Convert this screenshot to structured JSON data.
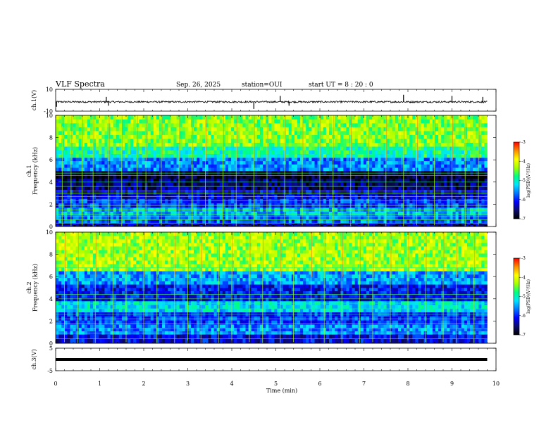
{
  "header": {
    "title": "VLF Spectra",
    "date": "Sep. 26, 2025",
    "station": "station=OUI",
    "start": "start  UT =   8 : 20 : 0"
  },
  "colors": {
    "colormap": [
      "#000000",
      "#0b0b6e",
      "#0000ff",
      "#0077ff",
      "#00e5ff",
      "#00ff7f",
      "#a6ff00",
      "#ffff00",
      "#ff8c00",
      "#ff0000",
      "#ffffff"
    ]
  },
  "chart_data": [
    {
      "type": "line",
      "name": "ch1-waveform",
      "ylabel": "ch.1(V)",
      "ylim": [
        -10,
        10
      ],
      "yticks": [
        "10",
        "-10"
      ],
      "xlim": [
        0,
        10
      ],
      "baseline": -1.5,
      "spikes": [
        {
          "x": 0.02,
          "y": -6
        },
        {
          "x": 1.15,
          "y": 3
        },
        {
          "x": 1.2,
          "y": -5
        },
        {
          "x": 4.5,
          "y": -8
        },
        {
          "x": 5.1,
          "y": 4
        },
        {
          "x": 5.3,
          "y": -5
        },
        {
          "x": 7.9,
          "y": 5
        },
        {
          "x": 9.0,
          "y": 4
        },
        {
          "x": 9.7,
          "y": 3
        }
      ]
    },
    {
      "type": "heatmap",
      "name": "ch1-spectrogram",
      "ylabel": "ch.1 Frequency (kHz)",
      "ylim": [
        0,
        10
      ],
      "yticks": [
        "0",
        "2",
        "4",
        "6",
        "8",
        "10"
      ],
      "xlim": [
        0,
        10
      ],
      "bands": [
        {
          "f0": 0.0,
          "f1": 0.3,
          "level": -6.5
        },
        {
          "f0": 0.3,
          "f1": 1.0,
          "level": -5.7
        },
        {
          "f0": 1.0,
          "f1": 1.7,
          "level": -5.4
        },
        {
          "f0": 1.7,
          "f1": 2.5,
          "level": -5.9
        },
        {
          "f0": 2.5,
          "f1": 3.3,
          "level": -6.3
        },
        {
          "f0": 3.3,
          "f1": 4.3,
          "level": -6.6
        },
        {
          "f0": 4.3,
          "f1": 5.0,
          "level": -6.9
        },
        {
          "f0": 5.0,
          "f1": 6.2,
          "level": -5.6
        },
        {
          "f0": 6.2,
          "f1": 7.2,
          "level": -4.9
        },
        {
          "f0": 7.2,
          "f1": 10.0,
          "level": -4.4
        }
      ],
      "lines_khz": [
        0.3,
        0.6,
        0.9,
        1.1,
        1.5,
        1.9,
        2.3,
        2.7,
        3.0,
        3.2,
        3.6,
        4.0,
        4.6,
        4.8
      ],
      "events_min": [
        0.15,
        0.35,
        0.6,
        0.85,
        1.2,
        1.5,
        1.85,
        2.05,
        2.4,
        2.8,
        3.1,
        3.4,
        3.8,
        4.1,
        4.5,
        4.8,
        5.2,
        5.6,
        6.0,
        6.3,
        6.7,
        7.1,
        7.5,
        7.9,
        8.2,
        8.6,
        9.0,
        9.3,
        9.6
      ]
    },
    {
      "type": "heatmap",
      "name": "ch2-spectrogram",
      "ylabel": "ch.2 Frequency (kHz)",
      "ylim": [
        0,
        10
      ],
      "yticks": [
        "0",
        "2",
        "4",
        "6",
        "8",
        "10"
      ],
      "xlim": [
        0,
        10
      ],
      "bands": [
        {
          "f0": 0.0,
          "f1": 0.8,
          "level": -6.2
        },
        {
          "f0": 0.8,
          "f1": 1.7,
          "level": -5.6
        },
        {
          "f0": 1.7,
          "f1": 2.8,
          "level": -5.9
        },
        {
          "f0": 2.8,
          "f1": 3.8,
          "level": -5.2
        },
        {
          "f0": 3.8,
          "f1": 5.3,
          "level": -6.1
        },
        {
          "f0": 5.3,
          "f1": 6.5,
          "level": -5.5
        },
        {
          "f0": 6.5,
          "f1": 10.0,
          "level": -4.3
        }
      ],
      "lines_khz": [
        0.4,
        0.9,
        1.3,
        1.8,
        2.2,
        2.6,
        3.1,
        3.6,
        4.0,
        4.4,
        6.8
      ],
      "events_min": [
        0.2,
        0.5,
        0.9,
        1.3,
        1.6,
        2.0,
        2.3,
        2.7,
        3.0,
        3.3,
        3.7,
        4.0,
        4.4,
        4.7,
        5.1,
        5.4,
        5.8,
        6.1,
        6.5,
        6.9,
        7.2,
        7.6,
        8.0,
        8.4,
        8.8,
        9.1,
        9.5
      ]
    },
    {
      "type": "line",
      "name": "ch3-waveform",
      "ylabel": "ch.3(V)",
      "ylim": [
        -5,
        5
      ],
      "yticks": [
        "5",
        "-5"
      ],
      "xlim": [
        0,
        10
      ],
      "baseline": 0,
      "spikes": []
    }
  ],
  "x_axis": {
    "label": "Time (min)",
    "ticks": [
      "0",
      "1",
      "2",
      "3",
      "4",
      "5",
      "6",
      "7",
      "8",
      "9",
      "10"
    ]
  },
  "colorbars": [
    {
      "name": "ch1-colorbar",
      "label": "log(PSD)(V²/Hz)",
      "range": [
        -7,
        -3
      ],
      "ticks": [
        "-3",
        "-4",
        "-5",
        "-6",
        "-7"
      ]
    },
    {
      "name": "ch2-colorbar",
      "label": "log(PSD)(V²/Hz)",
      "range": [
        -7,
        -3
      ],
      "ticks": [
        "-3",
        "-4",
        "-5",
        "-6",
        "-7"
      ]
    }
  ]
}
